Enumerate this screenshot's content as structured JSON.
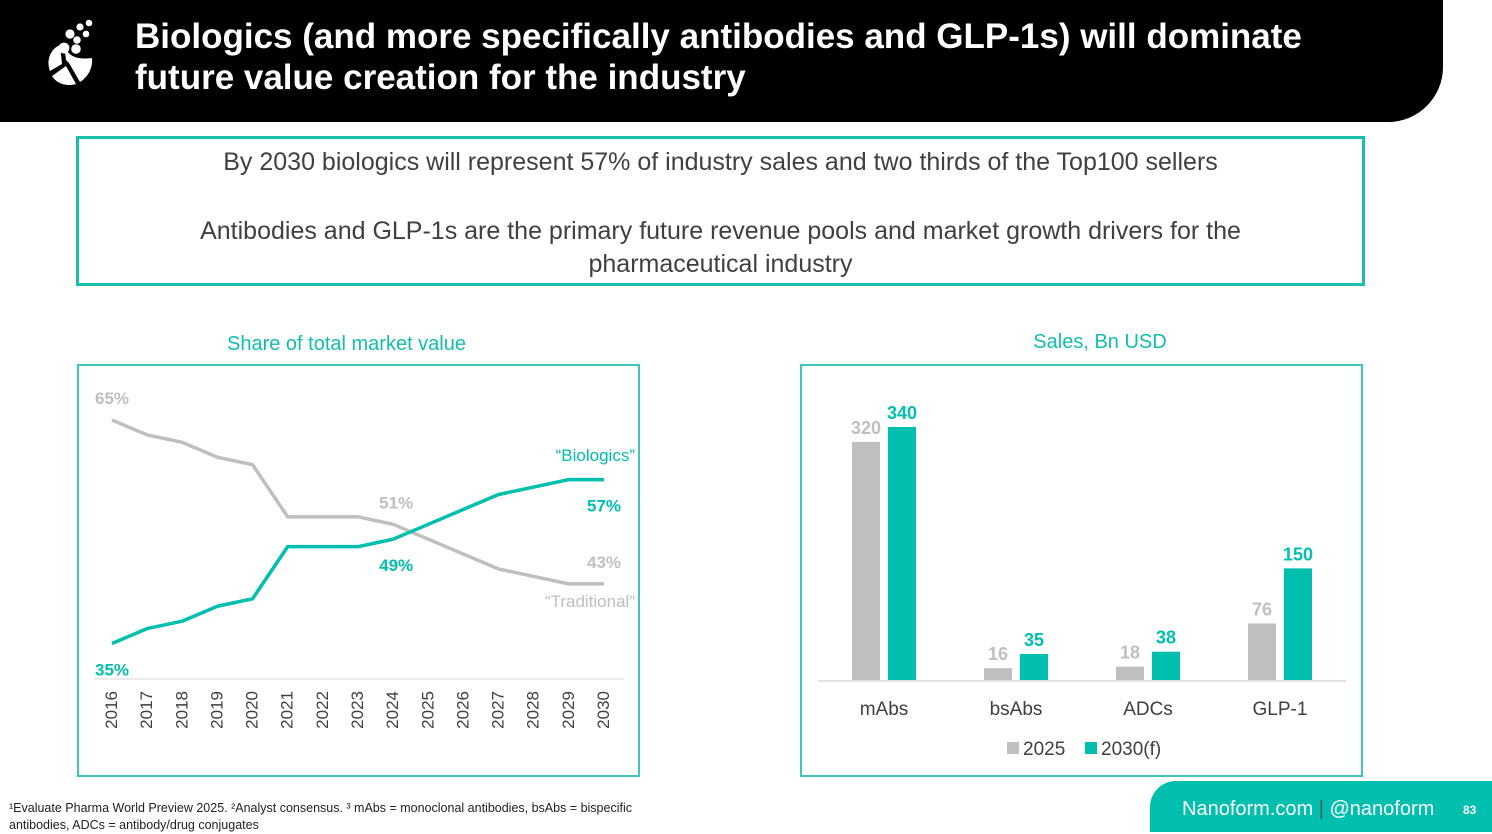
{
  "header": {
    "title_line1": "Biologics (and more specifically antibodies and GLP-1s) will dominate",
    "title_line2": "future value creation for the industry",
    "logo_icon": "nanoform-logo-icon"
  },
  "callout": {
    "line1": "By 2030 biologics will represent 57% of industry sales and two thirds of the Top100 sellers",
    "line2": "Antibodies and GLP-1s are the primary future revenue pools and market growth drivers for the pharmaceutical industry"
  },
  "colors": {
    "accent": "#00bfae",
    "grey": "#bfbfbf",
    "header_bg": "#000000"
  },
  "chart_data": [
    {
      "type": "line",
      "title": "Share of total market value",
      "x": [
        "2016",
        "2017",
        "2018",
        "2019",
        "2020",
        "2021",
        "2022",
        "2023",
        "2024",
        "2025",
        "2026",
        "2027",
        "2028",
        "2029",
        "2030"
      ],
      "series": [
        {
          "name": "“Traditional”",
          "color": "#bfbfbf",
          "values": [
            65,
            63,
            62,
            60,
            59,
            52,
            52,
            52,
            51,
            49,
            47,
            45,
            44,
            43,
            43
          ]
        },
        {
          "name": "“Biologics”",
          "color": "#00bfae",
          "values": [
            35,
            37,
            38,
            40,
            41,
            48,
            48,
            48,
            49,
            51,
            53,
            55,
            56,
            57,
            57
          ]
        }
      ],
      "annotations": [
        {
          "series": 0,
          "index": 0,
          "text": "65%"
        },
        {
          "series": 1,
          "index": 0,
          "text": "35%"
        },
        {
          "series": 0,
          "index": 8,
          "text": "51%"
        },
        {
          "series": 1,
          "index": 8,
          "text": "49%"
        },
        {
          "series": 1,
          "index": 14,
          "text": "57%"
        },
        {
          "series": 0,
          "index": 14,
          "text": "43%"
        }
      ],
      "ylim": [
        30,
        70
      ],
      "grid": false,
      "legend": "inline-right"
    },
    {
      "type": "bar",
      "title": "Sales, Bn USD",
      "categories": [
        "mAbs",
        "bsAbs",
        "ADCs",
        "GLP-1"
      ],
      "series": [
        {
          "name": "2025",
          "color": "#bfbfbf",
          "values": [
            320,
            16,
            18,
            76
          ]
        },
        {
          "name": "2030(f)",
          "color": "#00bfae",
          "values": [
            340,
            35,
            38,
            150
          ]
        }
      ],
      "ylim": [
        0,
        340
      ],
      "grid": false,
      "legend": "bottom"
    }
  ],
  "footnote": {
    "line1": "¹Evaluate Pharma World Preview 2025.  ²Analyst consensus. ³ mAbs = monoclonal antibodies, bsAbs = bispecific",
    "line2": "antibodies, ADCs = antibody/drug conjugates"
  },
  "footer": {
    "site": "Nanoform.com",
    "separator": "|",
    "handle": "@nanoform",
    "page": "83"
  }
}
